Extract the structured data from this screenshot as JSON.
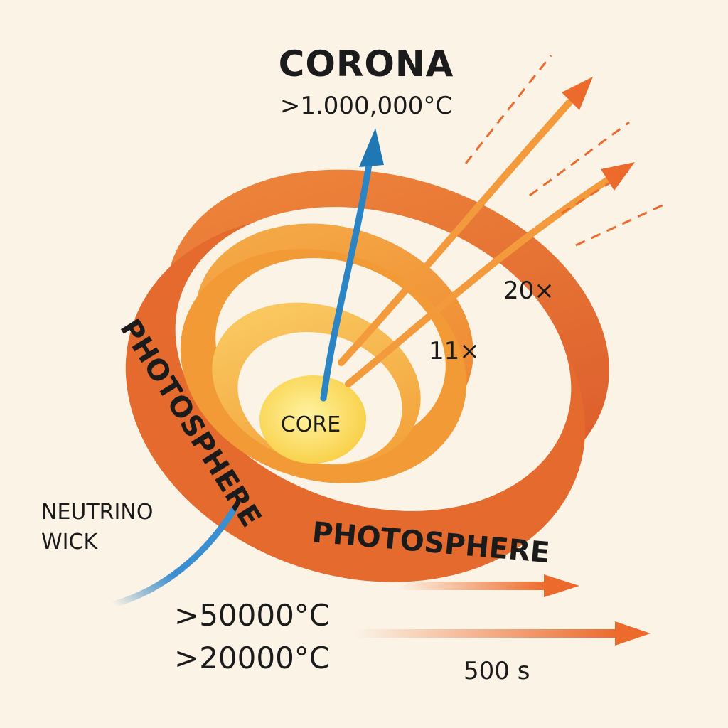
{
  "diagram": {
    "title": "CORONA",
    "corona_temp": ">1.000,000°C",
    "core_label": "CORE",
    "layer_band_label": "PHOTOSPHERE",
    "layer_band_label_2": "PHOTOSPHERE",
    "multiplier_outer": "20×",
    "multiplier_middle": "11×",
    "neutrino_label_line1": "NEUTRINO",
    "neutrino_label_line2": "WICK",
    "temp_line1": ">50000°C",
    "temp_line2": ">20000°C",
    "time_label": "500 s"
  },
  "colors": {
    "background": "#fbf3e6",
    "outer_ring": "#e0622a",
    "middle_ring": "#f0922f",
    "inner_ring": "#f6ad3a",
    "core": "#fbe05a",
    "blue_arrow": "#1f78b4",
    "orange_arrow": "#ec6a2c"
  }
}
